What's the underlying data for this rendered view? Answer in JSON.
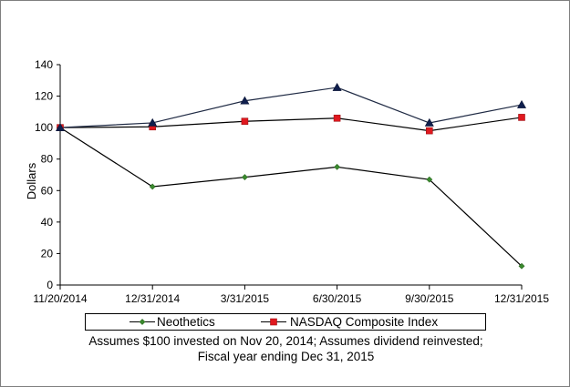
{
  "chart_data": {
    "type": "line",
    "title": "",
    "xlabel": "",
    "ylabel": "Dollars",
    "categories": [
      "11/20/2014",
      "12/31/2014",
      "3/31/2015",
      "6/30/2015",
      "9/30/2015",
      "12/31/2015"
    ],
    "ylim": [
      0,
      140
    ],
    "yticks": [
      "0",
      "20",
      "40",
      "60",
      "80",
      "100",
      "120",
      "140"
    ],
    "grid": false,
    "legend_position": "bottom",
    "series": [
      {
        "name": "Neothetics",
        "values": [
          100,
          62.5,
          68.5,
          75,
          67,
          12
        ],
        "color": "#000000",
        "marker_color": "#3a8a2e",
        "marker": "diamond"
      },
      {
        "name": "NASDAQ Composite Index",
        "values": [
          100,
          100.5,
          104,
          106,
          98,
          106.5
        ],
        "color": "#000000",
        "marker_color": "#e0191f",
        "marker": "square"
      },
      {
        "name": "",
        "values": [
          100,
          103,
          117,
          125.5,
          103,
          114.5
        ],
        "color": "#1f2a44",
        "marker_color": "#0f1f4d",
        "marker": "triangle"
      }
    ],
    "footnote": [
      "Assumes $100 invested on Nov 20, 2014;  Assumes dividend reinvested;",
      "Fiscal year ending Dec 31, 2015"
    ]
  }
}
